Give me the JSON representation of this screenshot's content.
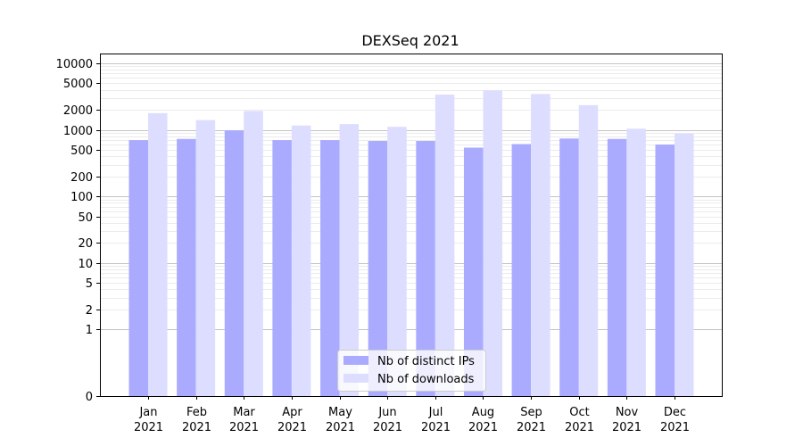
{
  "chart_data": {
    "type": "bar",
    "title": "DEXSeq 2021",
    "xlabel": "",
    "ylabel": "",
    "y_scale": "symlog",
    "ylim": [
      0,
      14000
    ],
    "y_ticks": [
      0,
      1,
      2,
      5,
      10,
      20,
      50,
      100,
      200,
      500,
      1000,
      2000,
      5000,
      10000
    ],
    "categories": [
      {
        "month": "Jan",
        "year": "2021"
      },
      {
        "month": "Feb",
        "year": "2021"
      },
      {
        "month": "Mar",
        "year": "2021"
      },
      {
        "month": "Apr",
        "year": "2021"
      },
      {
        "month": "May",
        "year": "2021"
      },
      {
        "month": "Jun",
        "year": "2021"
      },
      {
        "month": "Jul",
        "year": "2021"
      },
      {
        "month": "Aug",
        "year": "2021"
      },
      {
        "month": "Sep",
        "year": "2021"
      },
      {
        "month": "Oct",
        "year": "2021"
      },
      {
        "month": "Nov",
        "year": "2021"
      },
      {
        "month": "Dec",
        "year": "2021"
      }
    ],
    "series": [
      {
        "name": "Nb of distinct IPs",
        "color": "#aaaaff",
        "values": [
          700,
          730,
          980,
          700,
          700,
          680,
          680,
          540,
          610,
          740,
          730,
          600
        ]
      },
      {
        "name": "Nb of downloads",
        "color": "#ddddff",
        "values": [
          1780,
          1400,
          1920,
          1160,
          1220,
          1110,
          3380,
          3900,
          3450,
          2350,
          1040,
          880
        ]
      }
    ],
    "grid": true,
    "legend_position": "lower-center"
  }
}
